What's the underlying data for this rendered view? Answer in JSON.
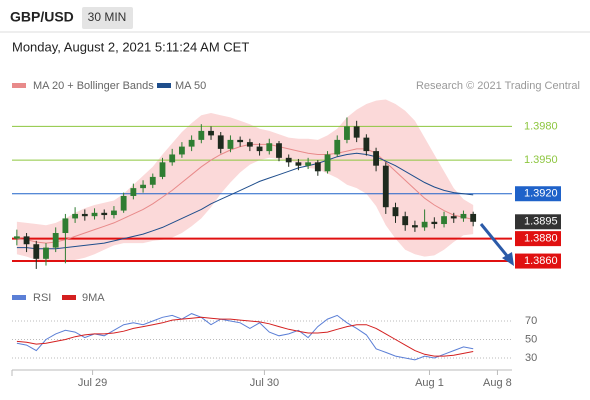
{
  "header": {
    "symbol": "GBP/USD",
    "timeframe": "30 MIN",
    "datetime": "Monday, August 2, 2021 5:11:24 AM CET"
  },
  "chart_data": [
    {
      "type": "candlestick",
      "source": "Research © 2021 Trading Central",
      "xlim": [
        -0.5,
        51
      ],
      "ylim": [
        1.384,
        1.4008
      ],
      "candle_colors": {
        "up": "#2f7d32",
        "down": "#1e2a1e"
      },
      "candles": {
        "open": [
          1.388,
          1.3882,
          1.3875,
          1.3862,
          1.3872,
          1.3885,
          1.3898,
          1.3902,
          1.39,
          1.3903,
          1.3901,
          1.3905,
          1.3918,
          1.3925,
          1.3928,
          1.3935,
          1.3948,
          1.3955,
          1.3962,
          1.3968,
          1.3976,
          1.3972,
          1.396,
          1.3968,
          1.3966,
          1.3962,
          1.3958,
          1.3965,
          1.3952,
          1.3948,
          1.3945,
          1.3948,
          1.394,
          1.3955,
          1.3968,
          1.398,
          1.397,
          1.3958,
          1.3945,
          1.3908,
          1.39,
          1.3892,
          1.389,
          1.3895,
          1.3893,
          1.39,
          1.3898,
          1.3902
        ],
        "high": [
          1.3888,
          1.3885,
          1.3878,
          1.3876,
          1.389,
          1.3902,
          1.3908,
          1.3906,
          1.3907,
          1.3906,
          1.3909,
          1.3921,
          1.3929,
          1.3932,
          1.3938,
          1.3952,
          1.396,
          1.3966,
          1.3972,
          1.3982,
          1.398,
          1.3975,
          1.3972,
          1.3971,
          1.3969,
          1.3965,
          1.3969,
          1.3967,
          1.3955,
          1.3951,
          1.3952,
          1.395,
          1.3958,
          1.3972,
          1.3988,
          1.3985,
          1.3973,
          1.3961,
          1.3948,
          1.3912,
          1.3904,
          1.3896,
          1.3906,
          1.3899,
          1.3904,
          1.3903,
          1.3905,
          1.3904
        ],
        "low": [
          1.3874,
          1.3868,
          1.3853,
          1.3856,
          1.3868,
          1.3858,
          1.3894,
          1.3896,
          1.3897,
          1.3897,
          1.3898,
          1.3903,
          1.3915,
          1.3921,
          1.3925,
          1.3933,
          1.3945,
          1.3952,
          1.3958,
          1.3965,
          1.3968,
          1.3956,
          1.3957,
          1.3962,
          1.3958,
          1.3954,
          1.3955,
          1.3949,
          1.3944,
          1.3941,
          1.3942,
          1.3936,
          1.3938,
          1.3953,
          1.3965,
          1.3966,
          1.3954,
          1.394,
          1.3902,
          1.3894,
          1.3887,
          1.3886,
          1.3887,
          1.3889,
          1.389,
          1.3894,
          1.3895,
          1.3891
        ],
        "close": [
          1.3882,
          1.3875,
          1.3862,
          1.3872,
          1.3885,
          1.3898,
          1.3902,
          1.39,
          1.3903,
          1.3901,
          1.3905,
          1.3918,
          1.3925,
          1.3928,
          1.3935,
          1.3948,
          1.3955,
          1.3962,
          1.3968,
          1.3976,
          1.3972,
          1.396,
          1.3968,
          1.3966,
          1.3962,
          1.3958,
          1.3965,
          1.3952,
          1.3948,
          1.3945,
          1.3948,
          1.394,
          1.3955,
          1.3968,
          1.398,
          1.397,
          1.3958,
          1.3945,
          1.3908,
          1.39,
          1.3892,
          1.389,
          1.3895,
          1.3893,
          1.39,
          1.3898,
          1.3902,
          1.3895
        ]
      },
      "series": [
        {
          "name": "MA 20 + Bollinger Bands",
          "color": "#e88a8a",
          "band_color": "#fbd9d9",
          "values": [
            1.388,
            1.3879,
            1.3877,
            1.3876,
            1.3877,
            1.3879,
            1.3882,
            1.3885,
            1.3888,
            1.3891,
            1.3894,
            1.3898,
            1.3902,
            1.3906,
            1.3911,
            1.3917,
            1.3923,
            1.393,
            1.3937,
            1.3944,
            1.395,
            1.3955,
            1.3959,
            1.3962,
            1.3964,
            1.3964,
            1.3964,
            1.3962,
            1.396,
            1.3958,
            1.3956,
            1.3955,
            1.3955,
            1.3956,
            1.3958,
            1.396,
            1.396,
            1.3956,
            1.3948,
            1.394,
            1.3932,
            1.3924,
            1.3916,
            1.391,
            1.3905,
            1.3901,
            1.3899,
            1.3897
          ],
          "upper": [
            1.3895,
            1.3894,
            1.3893,
            1.3892,
            1.3894,
            1.3898,
            1.3903,
            1.3907,
            1.391,
            1.3912,
            1.3914,
            1.392,
            1.3928,
            1.3936,
            1.3944,
            1.3955,
            1.3965,
            1.3975,
            1.3983,
            1.399,
            1.3992,
            1.399,
            1.3988,
            1.3985,
            1.3982,
            1.3978,
            1.3976,
            1.3973,
            1.397,
            1.3969,
            1.3969,
            1.3968,
            1.3972,
            1.3978,
            1.3988,
            1.3995,
            1.4,
            1.4003,
            1.4004,
            1.4,
            1.3994,
            1.3985,
            1.397,
            1.3955,
            1.394,
            1.3925,
            1.3915,
            1.391
          ],
          "lower": [
            1.3866,
            1.3864,
            1.3861,
            1.386,
            1.386,
            1.386,
            1.3861,
            1.3863,
            1.3866,
            1.387,
            1.3874,
            1.3876,
            1.3876,
            1.3876,
            1.3878,
            1.3879,
            1.3881,
            1.3885,
            1.3891,
            1.3898,
            1.3908,
            1.392,
            1.393,
            1.3939,
            1.3946,
            1.395,
            1.3952,
            1.3951,
            1.395,
            1.3947,
            1.3943,
            1.3942,
            1.3938,
            1.3934,
            1.3928,
            1.3925,
            1.392,
            1.3909,
            1.3892,
            1.388,
            1.387,
            1.3866,
            1.3864,
            1.3865,
            1.387,
            1.3877,
            1.3883,
            1.3884
          ]
        },
        {
          "name": "MA 50",
          "color": "#1f4e8c",
          "values": [
            1.3872,
            1.3872,
            1.3871,
            1.3871,
            1.3871,
            1.3872,
            1.3873,
            1.3874,
            1.3875,
            1.3876,
            1.3878,
            1.388,
            1.3882,
            1.3884,
            1.3887,
            1.389,
            1.3894,
            1.3898,
            1.3902,
            1.3906,
            1.3911,
            1.3915,
            1.3919,
            1.3923,
            1.3927,
            1.3931,
            1.3934,
            1.3937,
            1.394,
            1.3943,
            1.3945,
            1.3947,
            1.395,
            1.3953,
            1.3955,
            1.3956,
            1.3955,
            1.3953,
            1.3949,
            1.3945,
            1.394,
            1.3935,
            1.393,
            1.3926,
            1.3923,
            1.3921,
            1.392,
            1.3919
          ]
        }
      ],
      "levels": [
        {
          "value": 1.398,
          "label": "1.3980",
          "color": "#8dc63f",
          "line": true,
          "box": false
        },
        {
          "value": 1.395,
          "label": "1.3950",
          "color": "#8dc63f",
          "line": true,
          "box": false
        },
        {
          "value": 1.392,
          "label": "1.3920",
          "color": "#1f62c9",
          "line": true,
          "box": true
        },
        {
          "value": 1.3895,
          "label": "1.3895",
          "color": "#333333",
          "line": false,
          "box": true
        },
        {
          "value": 1.388,
          "label": "1.3880",
          "color": "#e01010",
          "line": true,
          "box": true
        },
        {
          "value": 1.386,
          "label": "1.3860",
          "color": "#e01010",
          "line": true,
          "box": true
        }
      ]
    },
    {
      "type": "line",
      "xlim": [
        -0.5,
        51
      ],
      "ylim": [
        20,
        86
      ],
      "yticks": [
        70,
        50,
        30
      ],
      "grid": true,
      "xticks": [
        {
          "value": 7.8,
          "label": "Jul 29"
        },
        {
          "value": 25.5,
          "label": "Jul 30"
        },
        {
          "value": 42.5,
          "label": "Aug 1"
        },
        {
          "value": 49.5,
          "label": "Aug 8"
        }
      ],
      "series": [
        {
          "name": "RSI",
          "color": "#5b7fd6",
          "values": [
            46,
            44,
            38,
            50,
            56,
            60,
            58,
            52,
            56,
            54,
            60,
            66,
            68,
            66,
            70,
            74,
            76,
            72,
            78,
            74,
            66,
            72,
            70,
            68,
            62,
            68,
            58,
            54,
            56,
            60,
            52,
            64,
            72,
            76,
            68,
            62,
            55,
            40,
            36,
            32,
            30,
            28,
            32,
            30,
            34,
            38,
            42,
            40
          ]
        },
        {
          "name": "9MA",
          "color": "#d42020",
          "values": [
            48,
            47,
            45,
            46,
            48,
            50,
            53,
            55,
            56,
            56,
            57,
            59,
            62,
            64,
            66,
            68,
            71,
            72,
            73,
            74,
            73,
            72,
            72,
            71,
            70,
            69,
            67,
            64,
            61,
            59,
            57,
            57,
            58,
            61,
            64,
            66,
            66,
            62,
            56,
            50,
            44,
            38,
            34,
            32,
            32,
            33,
            35,
            37
          ]
        }
      ]
    }
  ]
}
